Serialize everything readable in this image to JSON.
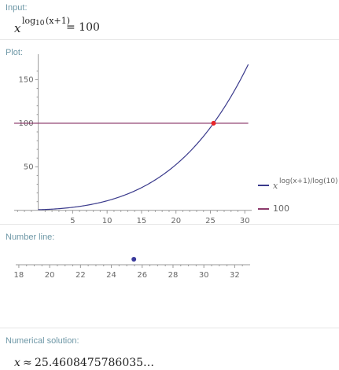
{
  "input": {
    "label": "Input:",
    "base": "x",
    "exponent_log": "log",
    "exponent_base": "10",
    "exponent_arg": "(x+1)",
    "rhs": "= 100"
  },
  "plot": {
    "label": "Plot:",
    "colors": {
      "curve": "#3a3a8c",
      "constant": "#8c3a6b",
      "point": "#e8262a"
    }
  },
  "chart_data": {
    "type": "line",
    "title": "",
    "xlabel": "",
    "ylabel": "",
    "xlim": [
      -3.5,
      31
    ],
    "ylim": [
      -2,
      172
    ],
    "x_ticks": [
      5,
      10,
      15,
      20,
      25,
      30
    ],
    "y_ticks": [
      50,
      100,
      150
    ],
    "series": [
      {
        "name": "x^(log(x+1)/log(10))",
        "function": "x^(log10(x+1))",
        "x_range": [
          0,
          30.5
        ]
      },
      {
        "name": "100",
        "values_constant": 100,
        "x_range": [
          -3.5,
          30.5
        ]
      }
    ],
    "intersection": {
      "x": 25.46,
      "y": 100
    },
    "legend": [
      "x^(log(x+1)/log(10))",
      "100"
    ],
    "legend_placement": "right"
  },
  "legend": {
    "curve_base": "x",
    "curve_exp": "log(x+1)/log(10)",
    "constant": "100"
  },
  "number_line": {
    "label": "Number line:",
    "ticks": [
      18,
      20,
      22,
      24,
      26,
      28,
      30,
      32
    ],
    "range": [
      17.8,
      33
    ],
    "point": 25.46,
    "point_color": "#3a3a9c"
  },
  "solution": {
    "label": "Numerical solution:",
    "var": "x",
    "approx": "≈",
    "value": "25.4608475786035…"
  }
}
